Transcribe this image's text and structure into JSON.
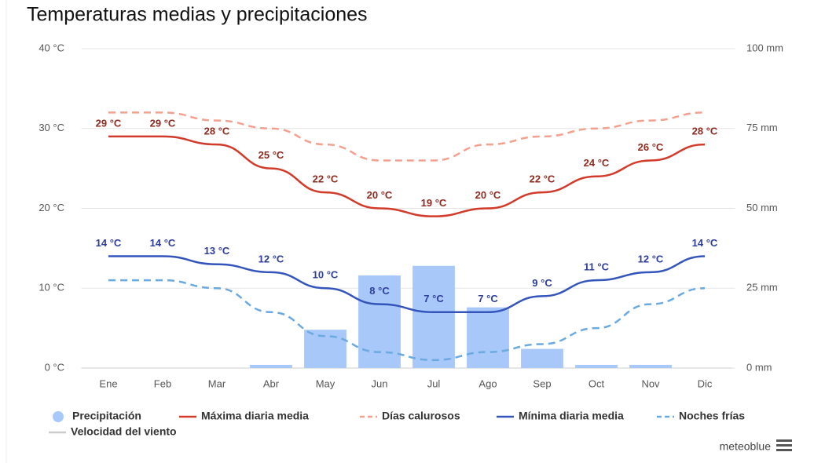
{
  "chart_data": {
    "type": "combo",
    "title": "Temperaturas medias y precipitaciones",
    "categories": [
      "Ene",
      "Feb",
      "Mar",
      "Abr",
      "May",
      "Jun",
      "Jul",
      "Ago",
      "Sep",
      "Oct",
      "Nov",
      "Dic"
    ],
    "ylim": [
      0,
      40
    ],
    "yticks": [
      {
        "value": 0,
        "label": "0 °C"
      },
      {
        "value": 10,
        "label": "10 °C"
      },
      {
        "value": 20,
        "label": "20 °C"
      },
      {
        "value": 30,
        "label": "30 °C"
      },
      {
        "value": 40,
        "label": "40 °C"
      }
    ],
    "y2lim": [
      0,
      100
    ],
    "y2ticks": [
      {
        "value": 0,
        "label": "0 mm"
      },
      {
        "value": 25,
        "label": "25 mm"
      },
      {
        "value": 50,
        "label": "50 mm"
      },
      {
        "value": 75,
        "label": "75 mm"
      },
      {
        "value": 100,
        "label": "100 mm"
      }
    ],
    "grid": true,
    "series": [
      {
        "name": "Precipitación",
        "type": "bar",
        "axis": "y2",
        "color": "#a9c8fa",
        "values": [
          0,
          0,
          0,
          1,
          12,
          29,
          32,
          19,
          6,
          1,
          1,
          0
        ]
      },
      {
        "name": "Máxima diaria media",
        "type": "line",
        "dashed": false,
        "color": "#d23a2a",
        "label_color": "#8e2b1f",
        "values": [
          29,
          29,
          28,
          25,
          22,
          20,
          19,
          20,
          22,
          24,
          26,
          28
        ],
        "value_labels": [
          "29 °C",
          "29 °C",
          "28 °C",
          "25 °C",
          "22 °C",
          "20 °C",
          "19 °C",
          "20 °C",
          "22 °C",
          "24 °C",
          "26 °C",
          "28 °C"
        ]
      },
      {
        "name": "Días calurosos",
        "type": "line",
        "dashed": true,
        "color": "#f4a08e",
        "values": [
          32,
          32,
          31,
          30,
          28,
          26,
          26,
          28,
          29,
          30,
          31,
          32
        ]
      },
      {
        "name": "Mínima diaria media",
        "type": "line",
        "dashed": false,
        "color": "#3355bb",
        "label_color": "#2c3d9c",
        "values": [
          14,
          14,
          13,
          12,
          10,
          8,
          7,
          7,
          9,
          11,
          12,
          14
        ],
        "value_labels": [
          "14 °C",
          "14 °C",
          "13 °C",
          "12 °C",
          "10 °C",
          "8 °C",
          "7 °C",
          "7 °C",
          "9 °C",
          "11 °C",
          "12 °C",
          "14 °C"
        ]
      },
      {
        "name": "Noches frías",
        "type": "line",
        "dashed": true,
        "color": "#6aaae0",
        "values": [
          11,
          11,
          10,
          7,
          4,
          2,
          1,
          2,
          3,
          5,
          8,
          10
        ]
      },
      {
        "name": "Velocidad del viento",
        "type": "line",
        "dashed": false,
        "visible": false,
        "color": "#cccccc",
        "values": [
          null,
          null,
          null,
          null,
          null,
          null,
          null,
          null,
          null,
          null,
          null,
          null
        ]
      }
    ],
    "credit": "meteoblue"
  }
}
